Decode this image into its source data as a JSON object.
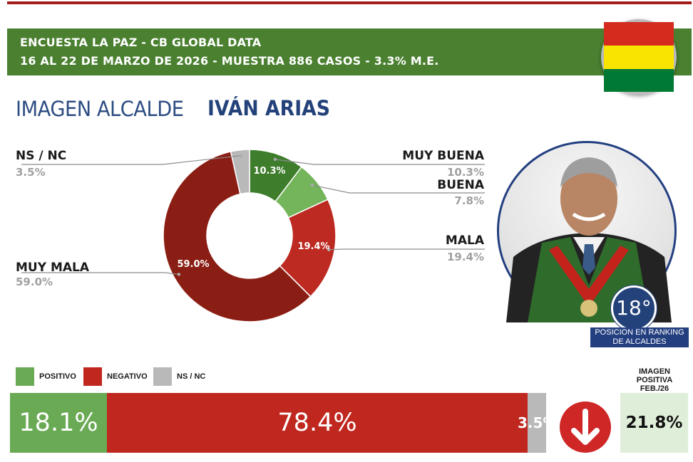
{
  "header": {
    "line1": "ENCUESTA LA PAZ - CB GLOBAL DATA",
    "line2": "16 AL 22 DE MARZO DE 2026 - MUESTRA 886 CASOS - 3.3% M.E."
  },
  "flag": {
    "colors": [
      "#d52b1e",
      "#f9e300",
      "#007934"
    ]
  },
  "title": {
    "prefix": "IMAGEN ALCALDE",
    "name": "IVÁN ARIAS"
  },
  "chart_data": {
    "type": "pie",
    "categories": [
      "MUY BUENA",
      "BUENA",
      "MALA",
      "MUY MALA",
      "NS / NC"
    ],
    "values": [
      10.3,
      7.8,
      19.4,
      59.0,
      3.5
    ],
    "colors": [
      "#3e7d2c",
      "#74b45a",
      "#bd2a22",
      "#8b1e14",
      "#b9b9b9"
    ],
    "display_labels": [
      "10.3%",
      "7.8%",
      "19.4%",
      "59.0%",
      "3.5%"
    ],
    "slice_labels": [
      "10.3%",
      "",
      "19.4%",
      "59.0%",
      ""
    ]
  },
  "summary_bar": {
    "type": "bar",
    "legend": [
      {
        "label": "POSITIVO",
        "color": "#6aaa55"
      },
      {
        "label": "NEGATIVO",
        "color": "#c0271f"
      },
      {
        "label": "NS / NC",
        "color": "#b9b9b9"
      }
    ],
    "segments": [
      {
        "label": "18.1%",
        "value": 18.1,
        "color": "#6aaa55"
      },
      {
        "label": "78.4%",
        "value": 78.4,
        "color": "#c0271f"
      },
      {
        "label": "3.5%",
        "value": 3.5,
        "color": "#b9b9b9"
      }
    ],
    "trend": "down",
    "trend_icon": "arrow-down-icon"
  },
  "previous": {
    "label_line1": "IMAGEN",
    "label_line2": "POSITIVA",
    "label_line3": "FEB./26",
    "value": "21.8%"
  },
  "ranking": {
    "position": "18°",
    "caption_line1": "POSICION EN RANKING",
    "caption_line2": "DE ALCALDES"
  }
}
